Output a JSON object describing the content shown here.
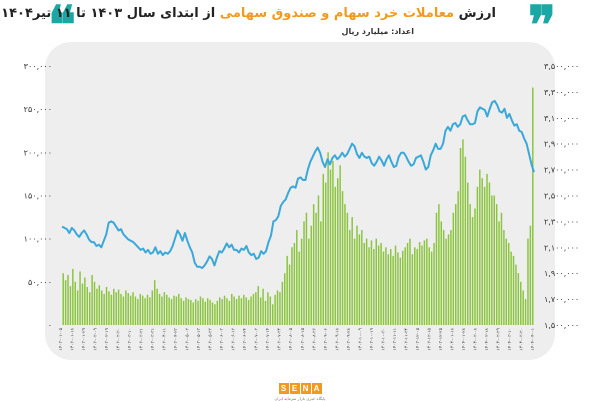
{
  "header": {
    "title_before": "ارزش ",
    "title_accent": "معاملات خرد سهام و صندوق سهامی",
    "title_after": " از ابتدای سال ۱۴۰۳ تا ۱۱ تیر۱۴۰۴",
    "subtitle": "اعداد: میلیارد ریال",
    "quote_left_icon": "quote-open-icon",
    "quote_right_icon": "quote-close-icon",
    "accent_color": "#f29a1f",
    "brand_color": "#1ba7a3"
  },
  "footer": {
    "logo_letters": [
      "S",
      "E",
      "N",
      "A"
    ],
    "tagline": "پایگاه خبری بازار سرمایه ایران"
  },
  "chart_data": {
    "type": "bar+line",
    "title": "",
    "left_axis": {
      "ylim": [
        0,
        300000
      ],
      "ticks": [
        0,
        50000,
        100000,
        150000,
        200000,
        250000,
        300000
      ],
      "tick_labels": [
        "۰",
        "۵۰,۰۰۰",
        "۱۰۰,۰۰۰",
        "۱۵۰,۰۰۰",
        "۲۰۰,۰۰۰",
        "۲۵۰,۰۰۰",
        "۳۰۰,۰۰۰"
      ]
    },
    "right_axis": {
      "ylim": [
        1500000,
        3500000
      ],
      "ticks": [
        1500000,
        1700000,
        1900000,
        2100000,
        2300000,
        2500000,
        2700000,
        2900000,
        3100000,
        3300000,
        3500000
      ],
      "tick_labels": [
        "۱,۵۰۰,۰۰۰",
        "۱,۷۰۰,۰۰۰",
        "۱,۹۰۰,۰۰۰",
        "۲,۱۰۰,۰۰۰",
        "۲,۳۰۰,۰۰۰",
        "۲,۵۰۰,۰۰۰",
        "۲,۷۰۰,۰۰۰",
        "۲,۹۰۰,۰۰۰",
        "۳,۱۰۰,۰۰۰",
        "۳,۳۰۰,۰۰۰",
        "۳,۵۰۰,۰۰۰"
      ]
    },
    "x_tick_labels": [
      "۱۴۰۳-۰۱-۰۵",
      "۱۴۰۳-۰۱-۱۸",
      "۱۴۰۳-۰۱-۲۹",
      "۱۴۰۳-۰۲-۰۹",
      "۱۴۰۳-۰۲-۱۹",
      "۱۴۰۳-۰۲-۳۰",
      "۱۴۰۳-۰۳-۱۰",
      "۱۴۰۳-۰۳-۲۱",
      "۱۴۰۳-۰۳-۳۱",
      "۱۴۰۳-۰۴-۱۱",
      "۱۴۰۳-۰۴-۲۳",
      "۱۴۰۳-۰۵-۰۲",
      "۱۴۰۳-۰۵-۱۳",
      "۱۴۰۳-۰۵-۲۳",
      "۱۴۰۳-۰۶-۰۳",
      "۱۴۰۳-۰۶-۱۳",
      "۱۴۰۳-۰۶-۲۴",
      "۱۴۰۳-۰۷-۰۳",
      "۱۴۰۳-۰۷-۱۴",
      "۱۴۰۳-۰۷-۲۴",
      "۱۴۰۳-۰۸-۰۵",
      "۱۴۰۳-۰۸-۱۵",
      "۱۴۰۳-۰۸-۲۶",
      "۱۴۰۳-۰۹-۰۶",
      "۱۴۰۳-۰۹-۱۸",
      "۱۴۰۳-۰۹-۲۸",
      "۱۴۰۳-۱۰-۰۹",
      "۱۴۰۳-۱۰-۱۹",
      "۱۴۰۳-۱۰-۳۰",
      "۱۴۰۳-۱۱-۱۱",
      "۱۴۰۳-۱۱-۲۴",
      "۱۴۰۳-۱۲-۰۵",
      "۱۴۰۳-۱۲-۱۵",
      "۱۴۰۳-۱۲-۲۵",
      "۱۴۰۴-۰۱-۱۸",
      "۱۴۰۴-۰۱-۲۸",
      "۱۴۰۴-۰۲-۰۸",
      "۱۴۰۴-۰۲-۱۸",
      "۱۴۰۴-۰۲-۲۹",
      "۱۴۰۴-۰۳-۱۰",
      "۱۴۰۴-۰۳-۲۰",
      "۱۴۰۴-۰۴-۰۱"
    ],
    "series": [
      {
        "type": "bar",
        "axis": "left",
        "color": "#8bc53f",
        "values": [
          60000,
          52000,
          58000,
          45000,
          65000,
          50000,
          40000,
          62000,
          48000,
          55000,
          44000,
          38000,
          58000,
          50000,
          42000,
          46000,
          40000,
          36000,
          44000,
          39000,
          35000,
          42000,
          38000,
          41000,
          36000,
          33000,
          40000,
          37000,
          34000,
          38000,
          33000,
          30000,
          36000,
          34000,
          31000,
          35000,
          32000,
          40000,
          52000,
          42000,
          36000,
          33000,
          38000,
          35000,
          32000,
          30000,
          34000,
          33000,
          36000,
          31000,
          28000,
          32000,
          30000,
          29000,
          26000,
          30000,
          28000,
          33000,
          31000,
          27000,
          31000,
          29000,
          26000,
          24000,
          28000,
          32000,
          30000,
          34000,
          31000,
          28000,
          36000,
          33000,
          30000,
          34000,
          31000,
          35000,
          32000,
          29000,
          33000,
          36000,
          38000,
          45000,
          32000,
          42000,
          28000,
          38000,
          33000,
          24000,
          35000,
          40000,
          38000,
          50000,
          60000,
          80000,
          70000,
          90000,
          95000,
          110000,
          85000,
          100000,
          120000,
          130000,
          100000,
          115000,
          140000,
          130000,
          150000,
          120000,
          175000,
          165000,
          200000,
          180000,
          190000,
          160000,
          170000,
          185000,
          155000,
          140000,
          130000,
          110000,
          125000,
          100000,
          115000,
          105000,
          110000,
          95000,
          100000,
          90000,
          98000,
          88000,
          100000,
          92000,
          95000,
          85000,
          90000,
          82000,
          88000,
          80000,
          92000,
          84000,
          78000,
          86000,
          90000,
          95000,
          100000,
          82000,
          90000,
          88000,
          96000,
          92000,
          98000,
          100000,
          90000,
          85000,
          95000,
          130000,
          140000,
          120000,
          110000,
          100000,
          105000,
          110000,
          130000,
          140000,
          155000,
          205000,
          215000,
          195000,
          165000,
          140000,
          125000,
          135000,
          160000,
          180000,
          170000,
          160000,
          175000,
          165000,
          150000,
          150000,
          140000,
          120000,
          130000,
          110000,
          100000,
          95000,
          85000,
          80000,
          70000,
          60000,
          50000,
          40000,
          30000,
          100000,
          115000,
          275000
        ]
      },
      {
        "type": "line",
        "axis": "right",
        "color": "#3aa8d8",
        "values": [
          2260000,
          2250000,
          2240000,
          2210000,
          2250000,
          2230000,
          2200000,
          2180000,
          2210000,
          2230000,
          2200000,
          2160000,
          2140000,
          2140000,
          2110000,
          2120000,
          2100000,
          2150000,
          2200000,
          2290000,
          2300000,
          2290000,
          2260000,
          2230000,
          2240000,
          2200000,
          2180000,
          2160000,
          2150000,
          2140000,
          2120000,
          2100000,
          2080000,
          2090000,
          2060000,
          2080000,
          2050000,
          2060000,
          2100000,
          2050000,
          2070000,
          2040000,
          2060000,
          2050000,
          2070000,
          2110000,
          2170000,
          2230000,
          2200000,
          2150000,
          2210000,
          2150000,
          2100000,
          2060000,
          1980000,
          1950000,
          1950000,
          1940000,
          1960000,
          1990000,
          2030000,
          2010000,
          1960000,
          2020000,
          2070000,
          2060000,
          2090000,
          2130000,
          2100000,
          2120000,
          2080000,
          2080000,
          2060000,
          2090000,
          2080000,
          2110000,
          2060000,
          2040000,
          2050000,
          2010000,
          2020000,
          2070000,
          2050000,
          2070000,
          2140000,
          2190000,
          2300000,
          2310000,
          2340000,
          2420000,
          2450000,
          2470000,
          2520000,
          2560000,
          2570000,
          2560000,
          2630000,
          2640000,
          2620000,
          2620000,
          2700000,
          2760000,
          2800000,
          2840000,
          2870000,
          2830000,
          2760000,
          2720000,
          2780000,
          2740000,
          2790000,
          2810000,
          2780000,
          2800000,
          2830000,
          2800000,
          2820000,
          2860000,
          2900000,
          2880000,
          2820000,
          2790000,
          2830000,
          2800000,
          2790000,
          2800000,
          2750000,
          2730000,
          2760000,
          2800000,
          2770000,
          2730000,
          2780000,
          2810000,
          2760000,
          2720000,
          2730000,
          2800000,
          2830000,
          2830000,
          2800000,
          2760000,
          2730000,
          2740000,
          2790000,
          2800000,
          2810000,
          2760000,
          2700000,
          2720000,
          2810000,
          2850000,
          2900000,
          2860000,
          2860000,
          2900000,
          3000000,
          3030000,
          3000000,
          3050000,
          3060000,
          3030000,
          3050000,
          3110000,
          3120000,
          3080000,
          3050000,
          3050000,
          3060000,
          3150000,
          3180000,
          3170000,
          3160000,
          3110000,
          3170000,
          3220000,
          3230000,
          3200000,
          3150000,
          3140000,
          3170000,
          3100000,
          3130000,
          3080000,
          3040000,
          3050000,
          3000000,
          2990000,
          2940000,
          2900000,
          2820000,
          2740000,
          2680000
        ]
      }
    ],
    "legend": "none",
    "grid": false
  }
}
